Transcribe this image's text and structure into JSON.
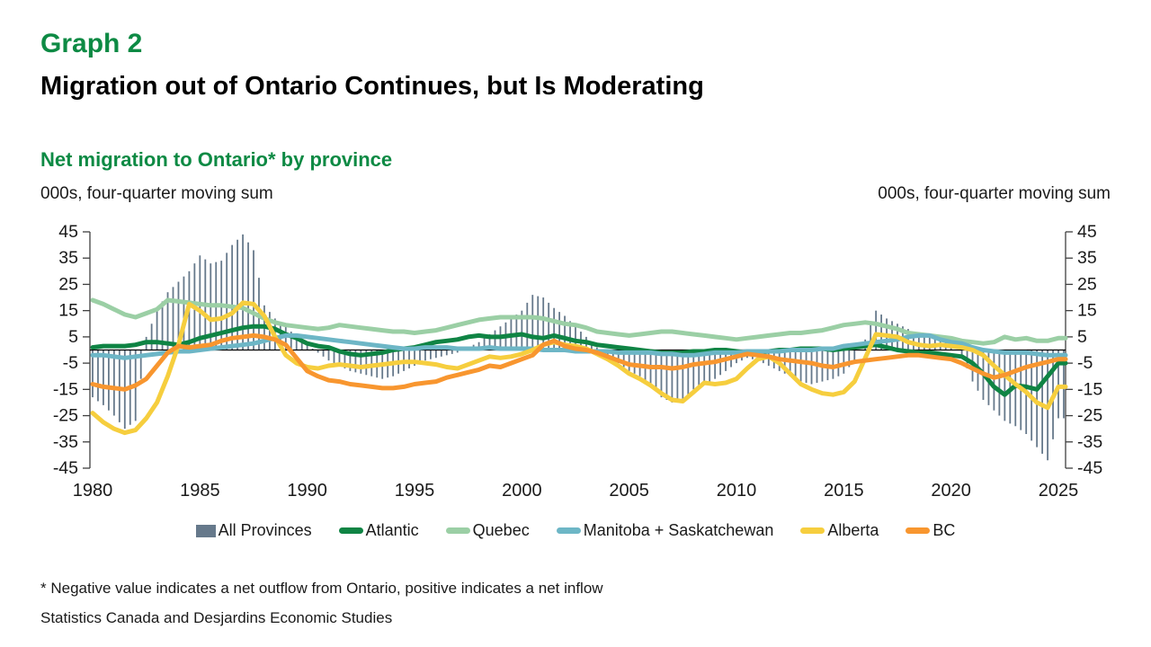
{
  "header": {
    "kicker": "Graph 2",
    "title": "Migration out of Ontario Continues, but Is Moderating"
  },
  "subtitle": "Net migration to Ontario* by province",
  "units": {
    "left": "000s, four-quarter moving sum",
    "right": "000s, four-quarter moving sum"
  },
  "footnotes": {
    "line1": "* Negative value indicates a net outflow from Ontario, positive indicates a net inflow",
    "line2": "Statistics Canada and Desjardins Economic Studies"
  },
  "colors": {
    "accent_green": "#0d8a44",
    "text": "#1a1a1a",
    "axis": "#404040"
  },
  "chart_data": {
    "type": "mixed-bar-line",
    "title": "Net migration to Ontario* by province",
    "ylabel_left": "000s, four-quarter moving sum",
    "ylabel_right": "000s, four-quarter moving sum",
    "ylim": [
      -45,
      45
    ],
    "y_ticks": [
      45,
      35,
      25,
      15,
      5,
      -5,
      -15,
      -25,
      -35,
      -45
    ],
    "x_ticks": [
      1980,
      1985,
      1990,
      1995,
      2000,
      2005,
      2010,
      2015,
      2020,
      2025
    ],
    "x_start": 1980,
    "x_step": 0.5,
    "grid": false,
    "legend_position": "bottom",
    "series": [
      {
        "name": "All Provinces",
        "type": "bar",
        "color": "#66798b",
        "values": [
          -18,
          -21,
          -25,
          -30,
          -27,
          5,
          15,
          22,
          26,
          30,
          36,
          33,
          34,
          40,
          44,
          38,
          17,
          12,
          9,
          5,
          2,
          -1,
          -4,
          -6,
          -8,
          -9,
          -10,
          -11,
          -10,
          -8,
          -6,
          -4,
          -3,
          -2,
          -1,
          1,
          3,
          6,
          9,
          12,
          15,
          21,
          20,
          16,
          13,
          9,
          5,
          1,
          -3,
          -5,
          -8,
          -10,
          -13,
          -18,
          -20,
          -19,
          -15,
          -13,
          -11,
          -8,
          -5,
          -3,
          -4,
          -6,
          -8,
          -10,
          -12,
          -13,
          -12,
          -11,
          -9,
          -4,
          4,
          15,
          12,
          10,
          8,
          6,
          5.5,
          5,
          2,
          -2,
          -12,
          -19,
          -23,
          -27,
          -29,
          -32,
          -37,
          -42,
          -26
        ]
      },
      {
        "name": "Atlantic",
        "type": "line",
        "color": "#0f8444",
        "values": [
          1,
          1.5,
          1.5,
          1.5,
          2,
          3,
          3,
          2.5,
          2,
          3,
          4.5,
          5.5,
          6.5,
          7.5,
          8.5,
          9,
          9,
          8,
          6,
          4.5,
          2.5,
          1.5,
          1,
          -0.5,
          -1.5,
          -2,
          -1.5,
          -1,
          0,
          0.5,
          1,
          2,
          3,
          3.5,
          4,
          5,
          5.5,
          5,
          5,
          5.5,
          6,
          5,
          4.5,
          5.5,
          4.5,
          3.5,
          3,
          2,
          1.5,
          1,
          0.5,
          0,
          -0.5,
          -1,
          -1,
          -1,
          -0.5,
          -0.5,
          0,
          0,
          -0.5,
          -1,
          -1,
          -0.5,
          0,
          0,
          0.5,
          0.5,
          0.5,
          0,
          0.5,
          1,
          1.5,
          2,
          1,
          0,
          -0.5,
          -1,
          -1,
          -1.5,
          -2,
          -2.5,
          -5,
          -9,
          -14,
          -17,
          -13.5,
          -14,
          -15,
          -10,
          -5
        ]
      },
      {
        "name": "Quebec",
        "type": "line",
        "color": "#9bcfa5",
        "values": [
          19,
          17.5,
          15.5,
          13.5,
          12.5,
          14,
          15.5,
          19,
          18.5,
          18,
          17.5,
          17,
          17,
          16.5,
          16,
          14,
          12,
          10.5,
          9.5,
          9,
          8.5,
          8,
          8.5,
          9.5,
          9,
          8.5,
          8,
          7.5,
          7,
          7,
          6.5,
          7,
          7.5,
          8.5,
          9.5,
          10.5,
          11.5,
          12,
          12.5,
          12.5,
          12.5,
          12.5,
          12,
          11,
          10,
          9.5,
          8.5,
          7,
          6.5,
          6,
          5.5,
          6,
          6.5,
          7,
          7,
          6.5,
          6,
          5.5,
          5,
          4.5,
          4,
          4.5,
          5,
          5.5,
          6,
          6.5,
          6.5,
          7,
          7.5,
          8.5,
          9.5,
          10,
          10.5,
          10,
          9,
          8,
          6.5,
          6,
          5.5,
          5,
          4.5,
          3.5,
          3,
          2.5,
          3,
          5,
          4,
          4.5,
          3.5,
          3.5,
          4.5
        ]
      },
      {
        "name": "Manitoba + Saskatchewan",
        "type": "line",
        "color": "#6db6c6",
        "values": [
          -2,
          -2,
          -2.5,
          -3,
          -2.5,
          -2,
          -1.5,
          -1,
          -0.5,
          -0.5,
          0,
          0.5,
          1,
          1.5,
          2,
          2.5,
          3.5,
          4.5,
          5.5,
          5.5,
          5,
          4.5,
          4,
          3.5,
          3,
          2.5,
          2,
          1.5,
          1,
          0.5,
          0.5,
          1,
          1,
          1,
          0.5,
          0.5,
          0.5,
          1,
          0.5,
          0.5,
          0.5,
          0.5,
          0,
          0,
          0,
          -0.5,
          -0.5,
          -0.5,
          -0.5,
          -1,
          -1,
          -1,
          -1,
          -1.5,
          -1.5,
          -2,
          -2,
          -1.5,
          -1,
          -1,
          -1,
          -0.5,
          -0.5,
          -0.5,
          -0.5,
          0,
          0,
          0,
          0.5,
          0.5,
          1.5,
          2,
          2.5,
          3,
          3.5,
          4,
          5,
          5.5,
          5.5,
          4,
          3,
          2.5,
          1,
          0,
          -0.5,
          -1,
          -1,
          -1,
          -1.5,
          -2,
          -2
        ]
      },
      {
        "name": "Alberta",
        "type": "line",
        "color": "#f6ce3e",
        "values": [
          -24,
          -27.5,
          -30,
          -31.5,
          -30.5,
          -26,
          -20,
          -10,
          2,
          17.5,
          15,
          11.5,
          12,
          14,
          18,
          17.5,
          13,
          5,
          -2,
          -5,
          -6.5,
          -7,
          -6,
          -5.5,
          -6,
          -6.5,
          -6,
          -5.5,
          -5,
          -4.5,
          -4.5,
          -5,
          -5.5,
          -6.5,
          -7,
          -5.5,
          -4,
          -2.5,
          -3,
          -2.5,
          -1.5,
          0,
          2,
          3,
          2,
          1.5,
          0.5,
          -1.5,
          -3.5,
          -6,
          -9,
          -11,
          -13.5,
          -16.5,
          -19,
          -19.5,
          -16,
          -12.5,
          -13,
          -12.5,
          -11,
          -7,
          -3.5,
          -2.5,
          -5,
          -9,
          -13,
          -15,
          -16.5,
          -17,
          -16,
          -12,
          -3,
          6,
          5.5,
          5,
          3,
          2,
          1.5,
          2,
          1.5,
          1,
          0,
          -2,
          -6,
          -9.5,
          -13,
          -16,
          -20,
          -22,
          -14
        ]
      },
      {
        "name": "BC",
        "type": "line",
        "color": "#f8962f",
        "values": [
          -13,
          -14,
          -14.5,
          -15,
          -13.5,
          -11,
          -6,
          -1,
          1.5,
          1,
          1.5,
          2,
          3.5,
          4.5,
          5,
          5.5,
          5,
          4,
          2,
          -3,
          -8,
          -10,
          -11.5,
          -12,
          -13,
          -13.5,
          -14,
          -14.5,
          -14.5,
          -14,
          -13,
          -12.5,
          -12,
          -10.5,
          -9.5,
          -8.5,
          -7.5,
          -6,
          -6.5,
          -5,
          -3.5,
          -2,
          2,
          3.5,
          1.5,
          0.5,
          0,
          -1,
          -2.5,
          -4,
          -5.5,
          -6,
          -6.5,
          -6.5,
          -7,
          -6.5,
          -5.5,
          -5,
          -4.5,
          -3.5,
          -2.5,
          -1.5,
          -2,
          -2.5,
          -3.5,
          -4,
          -4.5,
          -5,
          -6,
          -6.5,
          -5.5,
          -4.5,
          -4,
          -3.5,
          -3,
          -2.5,
          -2,
          -2,
          -2.5,
          -3,
          -3.5,
          -5,
          -7,
          -9,
          -10.5,
          -9.5,
          -8,
          -6.5,
          -5.5,
          -4.5,
          -3.5
        ]
      }
    ]
  }
}
